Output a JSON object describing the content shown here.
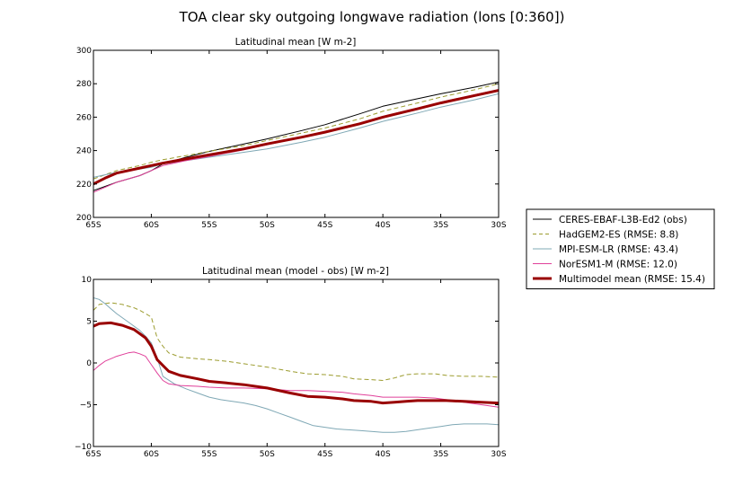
{
  "figure": {
    "title": "TOA clear sky outgoing longwave radiation (lons [0:360])"
  },
  "legend": {
    "placement": "right",
    "entries": [
      {
        "label": "CERES-EBAF-L3B-Ed2 (obs)",
        "color": "#000000",
        "style": "solid",
        "width": 1
      },
      {
        "label": "HadGEM2-ES (RMSE: 8.8)",
        "color": "#9c9c2f",
        "style": "dashed",
        "width": 1
      },
      {
        "label": "MPI-ESM-LR (RMSE: 43.4)",
        "color": "#7fa8b5",
        "style": "solid",
        "width": 1
      },
      {
        "label": "NorESM1-M (RMSE: 12.0)",
        "color": "#e0409a",
        "style": "solid",
        "width": 1
      },
      {
        "label": "Multimodel mean (RMSE: 15.4)",
        "color": "#990000",
        "style": "solid",
        "width": 3
      }
    ]
  },
  "chart_data": [
    {
      "type": "line",
      "title": "Latitudinal mean [W m-2]",
      "xlabel": "",
      "ylabel": "",
      "xlim": [
        -65,
        -30
      ],
      "ylim": [
        200,
        300
      ],
      "grid": false,
      "xticks": [
        -65,
        -60,
        -55,
        -50,
        -45,
        -40,
        -35,
        -30
      ],
      "xtick_labels": [
        "65S",
        "60S",
        "55S",
        "50S",
        "45S",
        "40S",
        "35S",
        "30S"
      ],
      "yticks": [
        200,
        220,
        240,
        260,
        280,
        300
      ],
      "ytick_labels": [
        "200",
        "220",
        "240",
        "260",
        "280",
        "300"
      ],
      "series": [
        {
          "name": "CERES-EBAF-L3B-Ed2 (obs)",
          "color": "#000000",
          "style": "solid",
          "width": 1,
          "x": [
            -65,
            -63,
            -61,
            -60,
            -59,
            -57,
            -55,
            -52,
            -50,
            -47,
            -45,
            -42,
            -40,
            -37,
            -35,
            -32,
            -30
          ],
          "y": [
            216,
            221,
            225,
            228,
            232,
            236,
            239.5,
            244,
            247,
            252,
            255.5,
            262,
            266.5,
            271,
            274,
            278,
            281
          ]
        },
        {
          "name": "HadGEM2-ES (RMSE: 8.8)",
          "color": "#9c9c2f",
          "style": "dashed",
          "width": 1,
          "x": [
            -65,
            -63,
            -61,
            -60,
            -59,
            -57,
            -55,
            -52,
            -50,
            -47,
            -45,
            -42,
            -40,
            -37,
            -35,
            -32,
            -30
          ],
          "y": [
            223,
            228,
            231,
            233,
            234.5,
            237,
            239.5,
            243,
            246,
            250.5,
            253.5,
            259,
            263.5,
            268.5,
            272,
            276.5,
            280
          ]
        },
        {
          "name": "MPI-ESM-LR (RMSE: 43.4)",
          "color": "#7fa8b5",
          "style": "solid",
          "width": 1,
          "x": [
            -65,
            -63,
            -61,
            -60,
            -59,
            -57,
            -55,
            -52,
            -50,
            -47,
            -45,
            -42,
            -40,
            -37,
            -35,
            -32,
            -30
          ],
          "y": [
            224,
            227,
            229,
            230,
            232,
            234,
            236,
            239,
            241,
            245,
            248,
            253.5,
            257.5,
            262.5,
            266,
            270.5,
            274
          ]
        },
        {
          "name": "NorESM1-M (RMSE: 12.0)",
          "color": "#e0409a",
          "style": "solid",
          "width": 1,
          "x": [
            -65,
            -63,
            -61,
            -60,
            -59,
            -57,
            -55,
            -52,
            -50,
            -47,
            -45,
            -42,
            -40,
            -37,
            -35,
            -32,
            -30
          ],
          "y": [
            215,
            221,
            225,
            228,
            231,
            234,
            236.5,
            240.5,
            243.5,
            248,
            251,
            256.5,
            260.5,
            265.5,
            269,
            273.5,
            276.5
          ]
        },
        {
          "name": "Multimodel mean (RMSE: 15.4)",
          "color": "#990000",
          "style": "solid",
          "width": 3,
          "x": [
            -65,
            -64,
            -63,
            -61,
            -60,
            -59,
            -57,
            -55,
            -52,
            -50,
            -47,
            -45,
            -42,
            -40,
            -37,
            -35,
            -32,
            -30
          ],
          "y": [
            220,
            223.5,
            226.5,
            229.5,
            231,
            232.5,
            235,
            237.5,
            241,
            244,
            248,
            251,
            256,
            260,
            265,
            268.5,
            273,
            276
          ]
        }
      ]
    },
    {
      "type": "line",
      "title": "Latitudinal mean (model - obs) [W m-2]",
      "xlabel": "",
      "ylabel": "",
      "xlim": [
        -65,
        -30
      ],
      "ylim": [
        -10,
        10
      ],
      "grid": false,
      "xticks": [
        -65,
        -60,
        -55,
        -50,
        -45,
        -40,
        -35,
        -30
      ],
      "xtick_labels": [
        "65S",
        "60S",
        "55S",
        "50S",
        "45S",
        "40S",
        "35S",
        "30S"
      ],
      "yticks": [
        -10,
        -5,
        0,
        5,
        10
      ],
      "ytick_labels": [
        "−10",
        "−5",
        "0",
        "5",
        "10"
      ],
      "series": [
        {
          "name": "HadGEM2-ES (RMSE: 8.8)",
          "color": "#9c9c2f",
          "style": "dashed",
          "width": 1,
          "x": [
            -65,
            -64.5,
            -63.5,
            -62.5,
            -61.5,
            -61,
            -60.5,
            -60,
            -59.5,
            -59,
            -58.5,
            -57.5,
            -56,
            -55,
            -53.5,
            -52,
            -50,
            -48,
            -46.5,
            -45,
            -43.5,
            -42.5,
            -41,
            -40,
            -39,
            -38,
            -37,
            -35.5,
            -34.5,
            -33,
            -31.5,
            -30
          ],
          "y": [
            6.3,
            7.0,
            7.2,
            7.0,
            6.6,
            6.3,
            5.9,
            5.5,
            3.0,
            2.0,
            1.2,
            0.7,
            0.5,
            0.4,
            0.2,
            -0.1,
            -0.5,
            -1.0,
            -1.3,
            -1.4,
            -1.6,
            -1.9,
            -2.0,
            -2.1,
            -1.8,
            -1.4,
            -1.3,
            -1.3,
            -1.5,
            -1.6,
            -1.6,
            -1.7
          ]
        },
        {
          "name": "MPI-ESM-LR (RMSE: 43.4)",
          "color": "#7fa8b5",
          "style": "solid",
          "width": 1,
          "x": [
            -65,
            -64.5,
            -64,
            -63.5,
            -63,
            -62,
            -61,
            -60.5,
            -60,
            -59.5,
            -59,
            -58,
            -57,
            -56,
            -55,
            -54,
            -53,
            -52,
            -51,
            -50,
            -49,
            -48,
            -47,
            -46,
            -45,
            -44,
            -43,
            -42,
            -41,
            -40,
            -39,
            -38,
            -37,
            -36,
            -35,
            -34,
            -33,
            -32,
            -31,
            -30
          ],
          "y": [
            7.8,
            7.6,
            7.1,
            6.5,
            5.9,
            4.9,
            3.9,
            3.2,
            2.4,
            0.6,
            -1.6,
            -2.5,
            -3.1,
            -3.6,
            -4.1,
            -4.4,
            -4.6,
            -4.8,
            -5.1,
            -5.5,
            -6.0,
            -6.5,
            -7.0,
            -7.5,
            -7.7,
            -7.9,
            -8.0,
            -8.1,
            -8.2,
            -8.3,
            -8.3,
            -8.2,
            -8.0,
            -7.8,
            -7.6,
            -7.4,
            -7.3,
            -7.3,
            -7.3,
            -7.4
          ]
        },
        {
          "name": "NorESM1-M (RMSE: 12.0)",
          "color": "#e0409a",
          "style": "solid",
          "width": 1,
          "x": [
            -65,
            -64.5,
            -64,
            -63,
            -62,
            -61.5,
            -61,
            -60.5,
            -60,
            -59.5,
            -59,
            -58.5,
            -57.5,
            -56,
            -55,
            -53.5,
            -52,
            -50,
            -48,
            -46.5,
            -45,
            -43.5,
            -42.5,
            -41,
            -40,
            -39,
            -38,
            -37,
            -35.5,
            -34.5,
            -33,
            -31.5,
            -30
          ],
          "y": [
            -0.9,
            -0.3,
            0.2,
            0.8,
            1.2,
            1.3,
            1.1,
            0.8,
            -0.2,
            -1.2,
            -2.1,
            -2.5,
            -2.7,
            -2.8,
            -2.9,
            -3.0,
            -3.0,
            -3.1,
            -3.3,
            -3.3,
            -3.4,
            -3.5,
            -3.7,
            -3.9,
            -4.1,
            -4.1,
            -4.1,
            -4.1,
            -4.2,
            -4.4,
            -4.7,
            -5.0,
            -5.3
          ]
        },
        {
          "name": "Multimodel mean (RMSE: 15.4)",
          "color": "#990000",
          "style": "solid",
          "width": 3,
          "x": [
            -65,
            -64.5,
            -63.5,
            -62.5,
            -61.5,
            -61,
            -60.5,
            -60,
            -59.5,
            -59,
            -58.5,
            -57.5,
            -56,
            -55,
            -53.5,
            -52,
            -50,
            -48,
            -46.5,
            -45,
            -43.5,
            -42.5,
            -41,
            -40,
            -39,
            -38,
            -37,
            -35.5,
            -34.5,
            -33,
            -31.5,
            -30
          ],
          "y": [
            4.4,
            4.7,
            4.8,
            4.5,
            4.0,
            3.5,
            3.0,
            2.0,
            0.4,
            -0.3,
            -1.0,
            -1.5,
            -1.9,
            -2.2,
            -2.4,
            -2.6,
            -3.0,
            -3.6,
            -4.0,
            -4.1,
            -4.3,
            -4.5,
            -4.6,
            -4.8,
            -4.7,
            -4.6,
            -4.5,
            -4.5,
            -4.5,
            -4.6,
            -4.7,
            -4.8
          ]
        }
      ]
    }
  ]
}
